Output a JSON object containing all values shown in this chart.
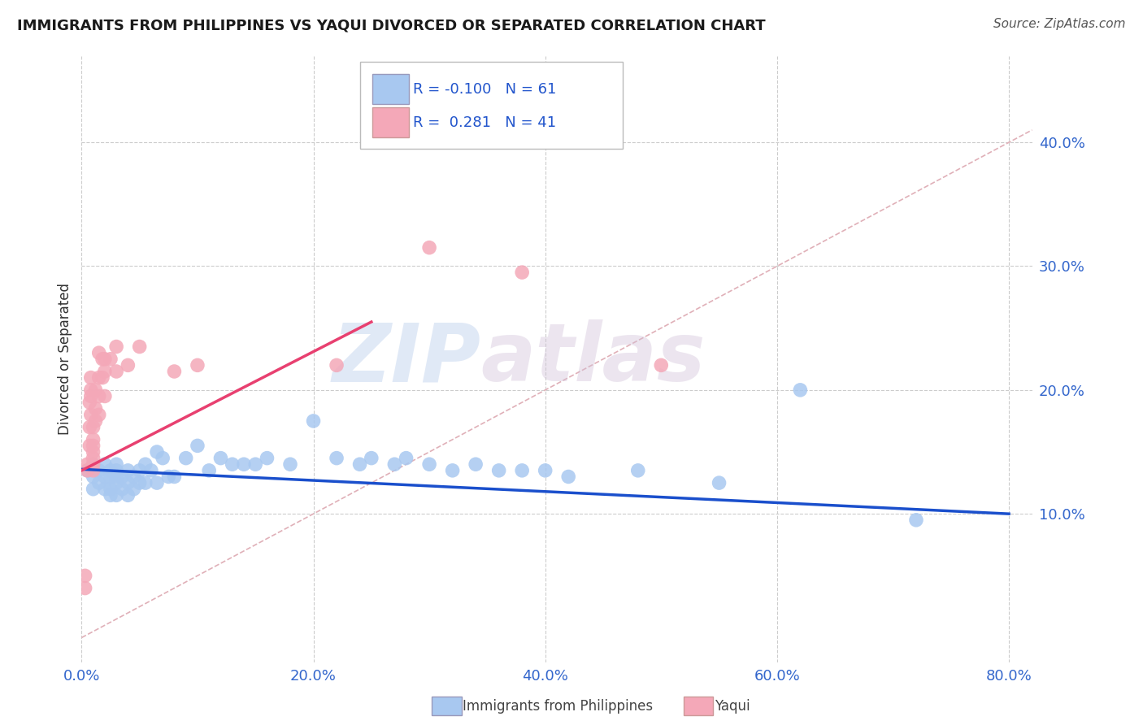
{
  "title": "IMMIGRANTS FROM PHILIPPINES VS YAQUI DIVORCED OR SEPARATED CORRELATION CHART",
  "source": "Source: ZipAtlas.com",
  "ylabel_label": "Divorced or Separated",
  "legend_blue_label": "Immigrants from Philippines",
  "legend_pink_label": "Yaqui",
  "blue_R": -0.1,
  "blue_N": 61,
  "pink_R": 0.281,
  "pink_N": 41,
  "xlim": [
    0.0,
    0.82
  ],
  "ylim": [
    -0.02,
    0.47
  ],
  "ytick_vals": [
    0.1,
    0.2,
    0.3,
    0.4
  ],
  "xtick_vals": [
    0.0,
    0.2,
    0.4,
    0.6,
    0.8
  ],
  "blue_color": "#a8c8f0",
  "pink_color": "#f4a8b8",
  "blue_line_color": "#1a4fcc",
  "pink_line_color": "#e84070",
  "diagonal_color": "#e0b0b8",
  "watermark_zip": "ZIP",
  "watermark_atlas": "atlas",
  "blue_scatter_x": [
    0.005,
    0.01,
    0.01,
    0.01,
    0.015,
    0.015,
    0.02,
    0.02,
    0.02,
    0.025,
    0.025,
    0.025,
    0.025,
    0.03,
    0.03,
    0.03,
    0.03,
    0.03,
    0.035,
    0.035,
    0.04,
    0.04,
    0.04,
    0.045,
    0.045,
    0.05,
    0.05,
    0.055,
    0.055,
    0.06,
    0.065,
    0.065,
    0.07,
    0.075,
    0.08,
    0.09,
    0.1,
    0.11,
    0.12,
    0.13,
    0.14,
    0.15,
    0.16,
    0.18,
    0.2,
    0.22,
    0.24,
    0.25,
    0.27,
    0.28,
    0.3,
    0.32,
    0.34,
    0.36,
    0.38,
    0.4,
    0.42,
    0.48,
    0.55,
    0.62,
    0.72
  ],
  "blue_scatter_y": [
    0.135,
    0.14,
    0.13,
    0.12,
    0.135,
    0.125,
    0.14,
    0.13,
    0.12,
    0.135,
    0.13,
    0.12,
    0.115,
    0.14,
    0.135,
    0.13,
    0.125,
    0.115,
    0.13,
    0.12,
    0.135,
    0.125,
    0.115,
    0.13,
    0.12,
    0.135,
    0.125,
    0.14,
    0.125,
    0.135,
    0.15,
    0.125,
    0.145,
    0.13,
    0.13,
    0.145,
    0.155,
    0.135,
    0.145,
    0.14,
    0.14,
    0.14,
    0.145,
    0.14,
    0.175,
    0.145,
    0.14,
    0.145,
    0.14,
    0.145,
    0.14,
    0.135,
    0.14,
    0.135,
    0.135,
    0.135,
    0.13,
    0.135,
    0.125,
    0.2,
    0.095
  ],
  "pink_scatter_x": [
    0.003,
    0.003,
    0.005,
    0.005,
    0.007,
    0.007,
    0.007,
    0.008,
    0.008,
    0.008,
    0.008,
    0.01,
    0.01,
    0.01,
    0.01,
    0.01,
    0.01,
    0.01,
    0.012,
    0.012,
    0.012,
    0.015,
    0.015,
    0.015,
    0.015,
    0.018,
    0.018,
    0.02,
    0.02,
    0.02,
    0.025,
    0.03,
    0.03,
    0.04,
    0.05,
    0.08,
    0.1,
    0.22,
    0.3,
    0.38,
    0.5
  ],
  "pink_scatter_y": [
    0.04,
    0.05,
    0.135,
    0.14,
    0.155,
    0.17,
    0.19,
    0.18,
    0.195,
    0.2,
    0.21,
    0.135,
    0.14,
    0.145,
    0.15,
    0.155,
    0.16,
    0.17,
    0.175,
    0.185,
    0.2,
    0.18,
    0.195,
    0.21,
    0.23,
    0.21,
    0.225,
    0.195,
    0.215,
    0.225,
    0.225,
    0.215,
    0.235,
    0.22,
    0.235,
    0.215,
    0.22,
    0.22,
    0.315,
    0.295,
    0.22
  ],
  "blue_line_x": [
    0.0,
    0.8
  ],
  "blue_line_y": [
    0.136,
    0.1
  ],
  "pink_line_x": [
    0.0,
    0.25
  ],
  "pink_line_y": [
    0.135,
    0.255
  ]
}
